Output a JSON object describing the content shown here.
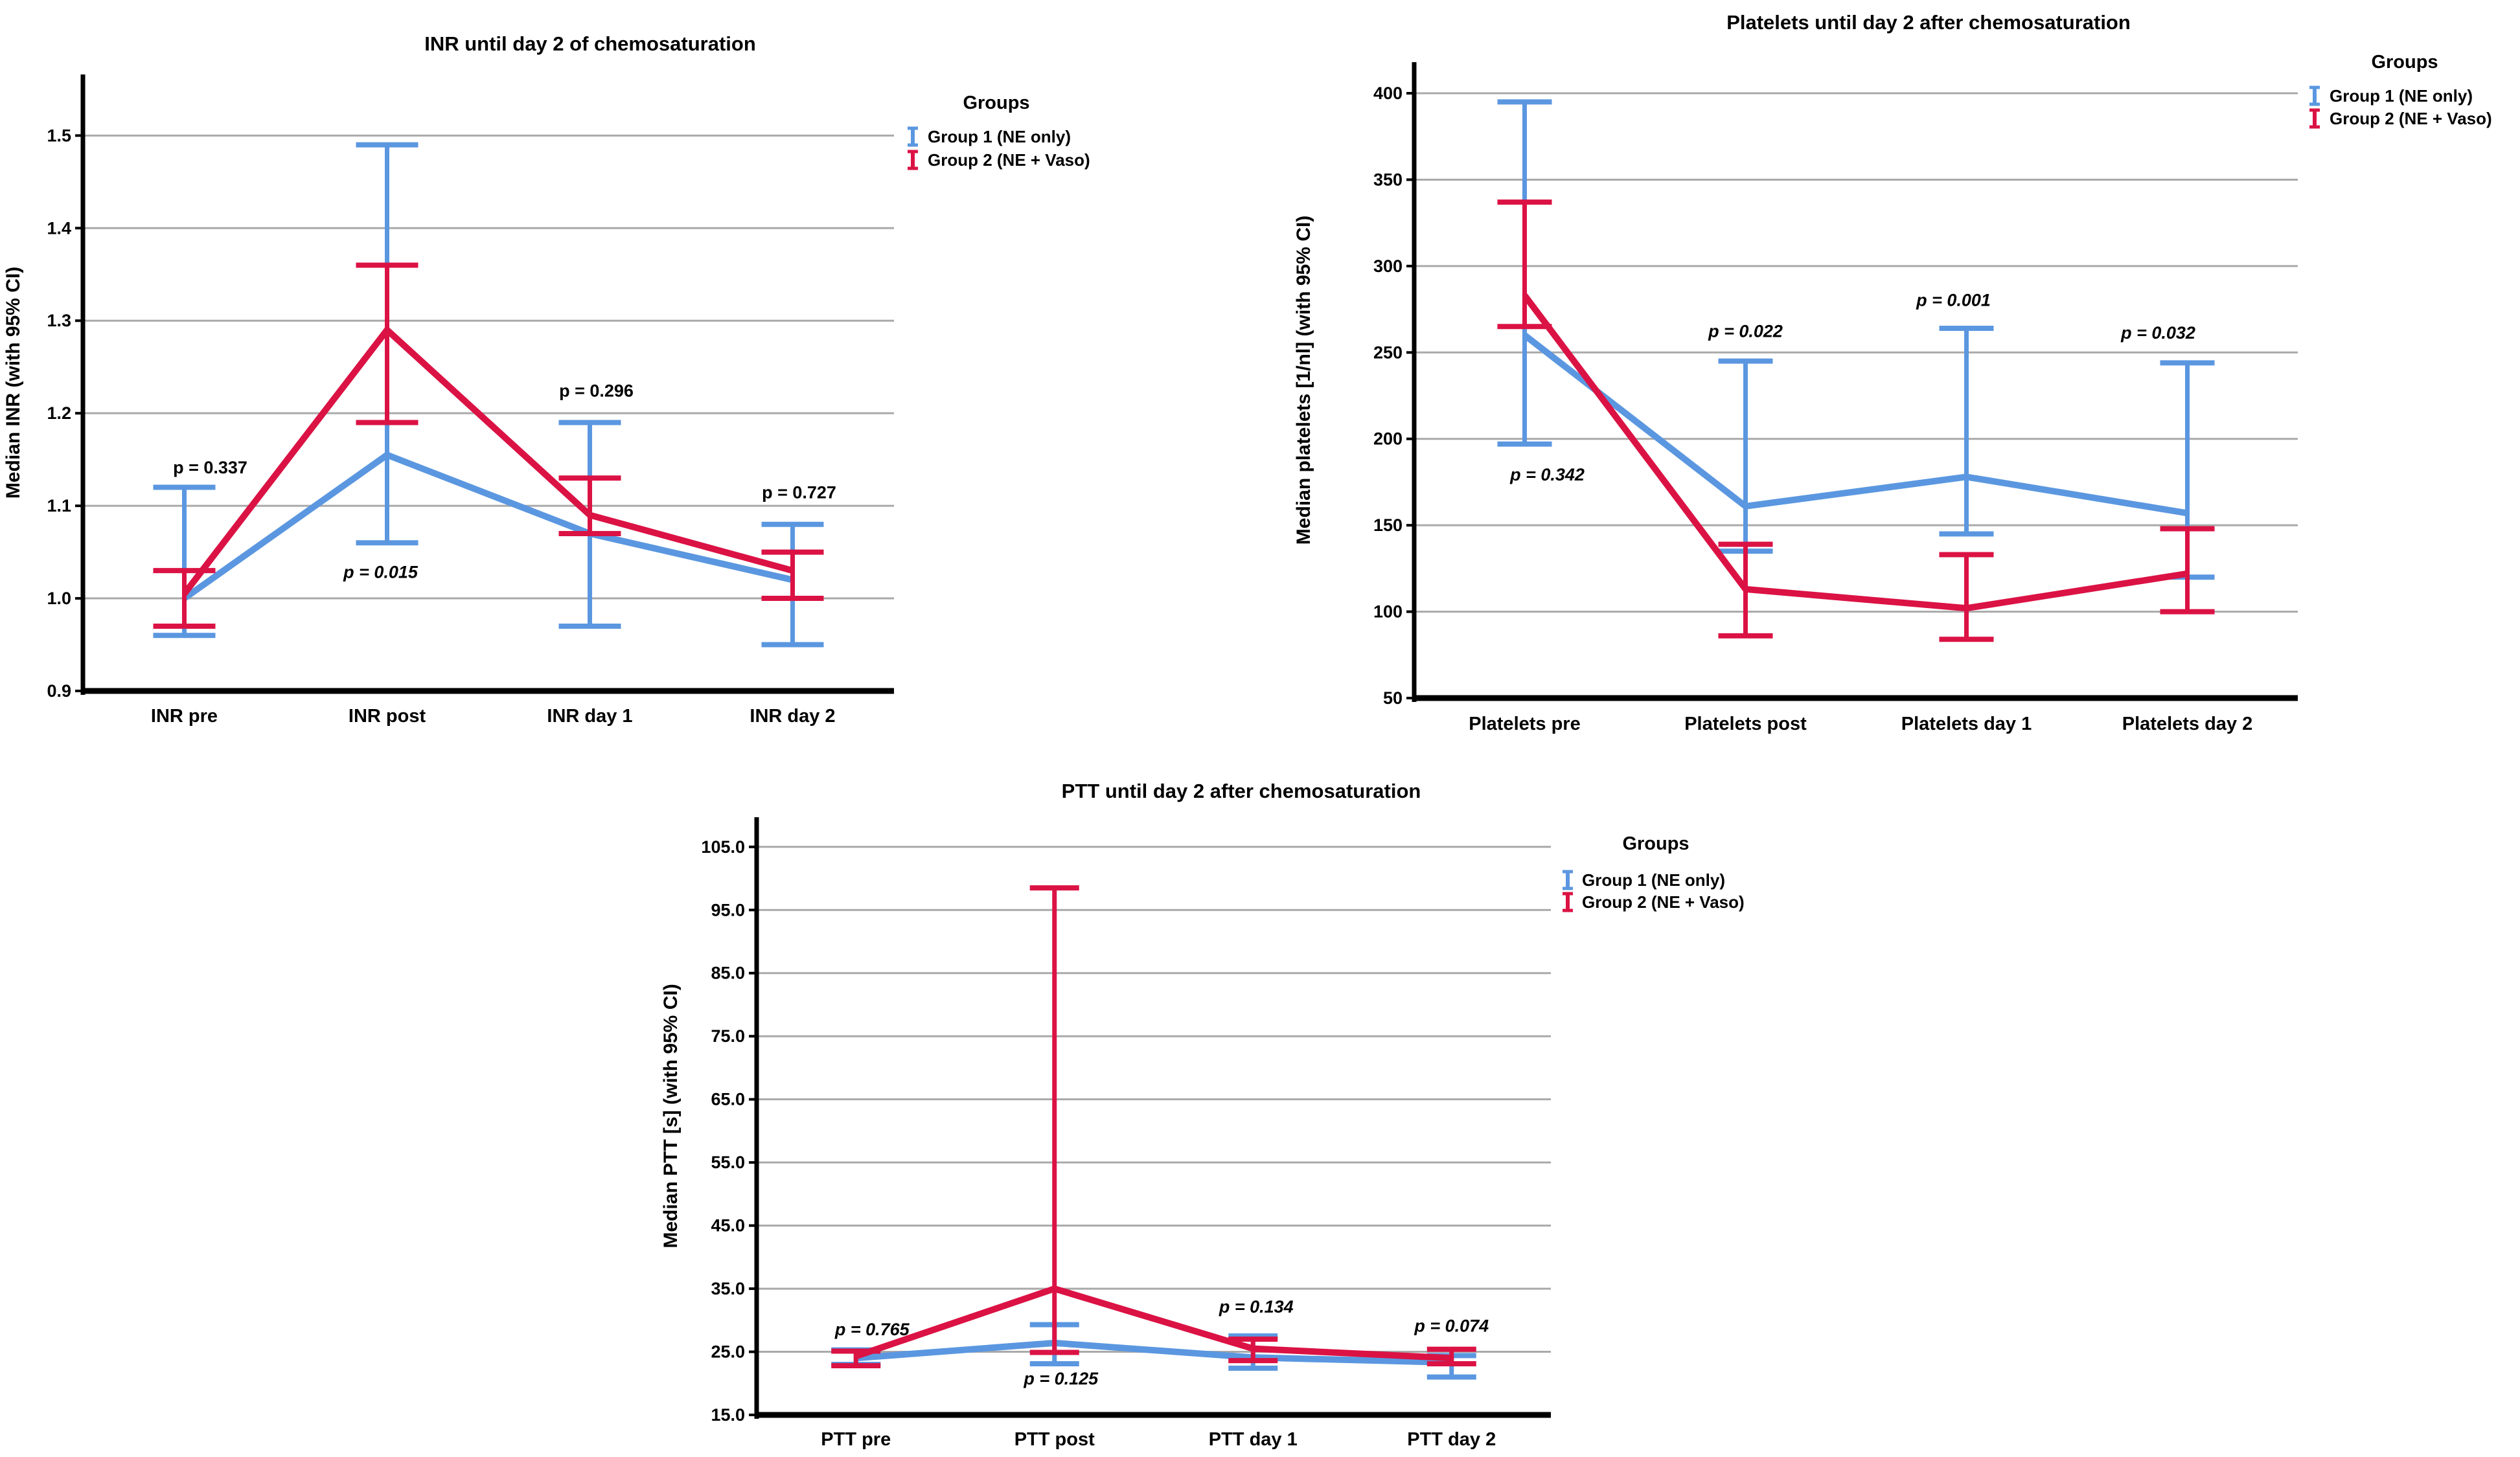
{
  "palette": {
    "group1_blue": "#5B97E0",
    "group2_red": "#DB1244",
    "grid": "#A9A9A9",
    "axis": "#000000",
    "background": "#FFFFFF"
  },
  "legend": {
    "title": "Groups",
    "items": [
      {
        "label": "Group 1 (NE only)",
        "color_key": "group1_blue",
        "icon": "errorbar-icon"
      },
      {
        "label": "Group 2 (NE + Vaso)",
        "color_key": "group2_red",
        "icon": "errorbar-icon"
      }
    ]
  },
  "chart_data": [
    {
      "type": "line",
      "title": "INR until day 2 of chemosaturation",
      "ylabel": "Median INR (with 95% CI)",
      "xlabel": "",
      "grid": true,
      "legend_position": "right-top",
      "categories": [
        "INR pre",
        "INR post",
        "INR day 1",
        "INR day 2"
      ],
      "y_ticks": {
        "min": 0.9,
        "max": 1.5,
        "step": 0.1,
        "decimals": 1
      },
      "y_tick_labels": [
        "0.9",
        "1.0",
        "1.1",
        "1.2",
        "1.3",
        "1.4",
        "1.5"
      ],
      "ylim": [
        0.9,
        1.566
      ],
      "series": [
        {
          "name": "Group 1 (NE only)",
          "color_key": "group1_blue",
          "median": [
            1.0,
            1.155,
            1.07,
            1.02
          ],
          "ci_low": [
            0.96,
            1.06,
            0.97,
            0.95
          ],
          "ci_high": [
            1.12,
            1.49,
            1.19,
            1.08
          ]
        },
        {
          "name": "Group 2 (NE + Vaso)",
          "color_key": "group2_red",
          "median": [
            1.005,
            1.29,
            1.09,
            1.03
          ],
          "ci_low": [
            0.97,
            1.19,
            1.07,
            1.0
          ],
          "ci_high": [
            1.03,
            1.36,
            1.13,
            1.05
          ]
        }
      ],
      "p_values": [
        {
          "text": "p = 0.337",
          "italic": false,
          "category_index": 0,
          "y_value": 1.135,
          "dx": 40
        },
        {
          "text": "p = 0.015",
          "italic": true,
          "category_index": 1,
          "y_value": 1.022,
          "dx": -10
        },
        {
          "text": "p = 0.296",
          "italic": false,
          "category_index": 2,
          "y_value": 1.218,
          "dx": 10
        },
        {
          "text": "p = 0.727",
          "italic": false,
          "category_index": 3,
          "y_value": 1.108,
          "dx": 10
        }
      ]
    },
    {
      "type": "line",
      "title": "Platelets until day 2 after chemosaturation",
      "ylabel": "Median platelets [1/nl] (with 95% CI)",
      "xlabel": "",
      "grid": true,
      "legend_position": "right-top",
      "categories": [
        "Platelets pre",
        "Platelets post",
        "Platelets day 1",
        "Platelets day 2"
      ],
      "y_ticks": {
        "min": 50,
        "max": 400,
        "step": 50,
        "decimals": 0
      },
      "y_tick_labels": [
        "50",
        "100",
        "150",
        "200",
        "250",
        "300",
        "350",
        "400"
      ],
      "ylim": [
        50,
        418
      ],
      "series": [
        {
          "name": "Group 1 (NE only)",
          "color_key": "group1_blue",
          "median": [
            260,
            161,
            178,
            157
          ],
          "ci_low": [
            197,
            135,
            145,
            120
          ],
          "ci_high": [
            395,
            245,
            264,
            244
          ]
        },
        {
          "name": "Group 2 (NE + Vaso)",
          "color_key": "group2_red",
          "median": [
            283,
            113,
            102,
            122
          ],
          "ci_low": [
            265,
            86,
            84,
            100
          ],
          "ci_high": [
            337,
            139,
            133,
            148
          ]
        }
      ],
      "p_values": [
        {
          "text": "p = 0.342",
          "italic": true,
          "category_index": 0,
          "y_value": 176,
          "dx": 35
        },
        {
          "text": "p = 0.022",
          "italic": true,
          "category_index": 1,
          "y_value": 259,
          "dx": 0
        },
        {
          "text": "p = 0.001",
          "italic": true,
          "category_index": 2,
          "y_value": 277,
          "dx": -20
        },
        {
          "text": "p = 0.032",
          "italic": true,
          "category_index": 3,
          "y_value": 258,
          "dx": -45
        }
      ]
    },
    {
      "type": "line",
      "title": "PTT until day 2 after chemosaturation",
      "ylabel": "Median PTT [s] (with 95% CI)",
      "xlabel": "",
      "grid": true,
      "legend_position": "right-top",
      "categories": [
        "PTT pre",
        "PTT post",
        "PTT day 1",
        "PTT day 2"
      ],
      "y_ticks": {
        "min": 15,
        "max": 105,
        "step": 10,
        "decimals": 1
      },
      "y_tick_labels": [
        "15.0",
        "25.0",
        "35.0",
        "45.0",
        "55.0",
        "65.0",
        "75.0",
        "85.0",
        "95.0",
        "105.0"
      ],
      "ylim": [
        15,
        109.7
      ],
      "series": [
        {
          "name": "Group 1 (NE only)",
          "color_key": "group1_blue",
          "median": [
            24.0,
            26.4,
            24.1,
            23.3
          ],
          "ci_low": [
            23.0,
            23.1,
            22.4,
            21.0
          ],
          "ci_high": [
            25.3,
            29.3,
            27.5,
            24.4
          ]
        },
        {
          "name": "Group 2 (NE + Vaso)",
          "color_key": "group2_red",
          "median": [
            24.3,
            35.0,
            25.5,
            24.0
          ],
          "ci_low": [
            22.8,
            24.9,
            23.6,
            23.1
          ],
          "ci_high": [
            25.1,
            98.5,
            27.0,
            25.4
          ]
        }
      ],
      "p_values": [
        {
          "text": "p = 0.765",
          "italic": true,
          "category_index": 0,
          "y_value": 27.6,
          "dx": 25
        },
        {
          "text": "p = 0.125",
          "italic": true,
          "category_index": 1,
          "y_value": 19.8,
          "dx": 10
        },
        {
          "text": "p = 0.134",
          "italic": true,
          "category_index": 2,
          "y_value": 31.2,
          "dx": 5
        },
        {
          "text": "p = 0.074",
          "italic": true,
          "category_index": 3,
          "y_value": 28.2,
          "dx": 0
        }
      ]
    }
  ]
}
